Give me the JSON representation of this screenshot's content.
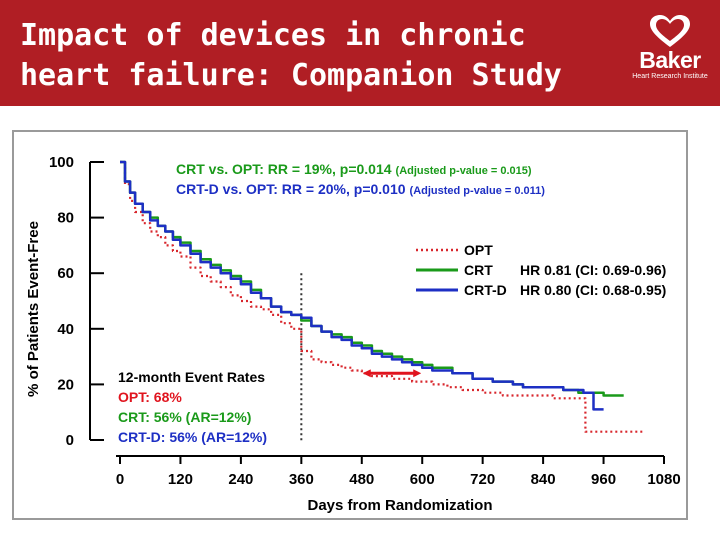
{
  "header": {
    "title_line1": "Impact of devices in chronic",
    "title_line2": "heart failure: Companion Study",
    "logo_text": "Baker",
    "logo_subtext": "Heart Research Institute",
    "background_color": "#b01e24"
  },
  "chart_data": {
    "type": "line",
    "xlabel": "Days from Randomization",
    "ylabel": "% of Patients Event-Free",
    "xlim": [
      0,
      1080
    ],
    "ylim": [
      0,
      100
    ],
    "xticks": [
      0,
      120,
      240,
      360,
      480,
      600,
      720,
      840,
      960,
      1080
    ],
    "yticks": [
      0,
      20,
      40,
      60,
      80,
      100
    ],
    "grid": false,
    "reference_line_x": 360,
    "annotations": {
      "crt_vs_opt": {
        "main": "CRT vs. OPT:  RR = 19%, p=0.014",
        "adjusted": "(Adjusted p-value = 0.015)",
        "color": "#1a9a1a"
      },
      "crtd_vs_opt": {
        "main": "CRT-D vs. OPT:  RR = 20%, p=0.010",
        "adjusted": "(Adjusted p-value = 0.011)",
        "color": "#1d2fc4"
      },
      "event_rates": {
        "heading": "12-month Event Rates",
        "opt": "OPT: 68%",
        "crt": "CRT: 56%  (AR=12%)",
        "crtd": "CRT-D: 56% (AR=12%)"
      },
      "arrow": {
        "x_from": 480,
        "x_to": 600,
        "y": 24,
        "color": "#e0141e"
      }
    },
    "legend": {
      "placement": "right",
      "entries": [
        {
          "name": "OPT",
          "hr": ""
        },
        {
          "name": "CRT",
          "hr": "HR 0.81 (CI:  0.69-0.96)"
        },
        {
          "name": "CRT-D",
          "hr": "HR 0.80 (CI:  0.68-0.95)"
        }
      ]
    },
    "series": [
      {
        "name": "OPT",
        "color": "#d8262c",
        "style": "dotted",
        "points": [
          [
            0,
            100
          ],
          [
            10,
            92
          ],
          [
            20,
            86
          ],
          [
            30,
            82
          ],
          [
            45,
            78
          ],
          [
            60,
            75
          ],
          [
            75,
            73
          ],
          [
            90,
            70
          ],
          [
            105,
            68
          ],
          [
            120,
            66
          ],
          [
            140,
            62
          ],
          [
            160,
            59
          ],
          [
            180,
            57
          ],
          [
            200,
            55
          ],
          [
            220,
            52
          ],
          [
            240,
            50
          ],
          [
            260,
            48
          ],
          [
            280,
            47
          ],
          [
            300,
            45
          ],
          [
            320,
            42
          ],
          [
            340,
            40
          ],
          [
            360,
            32
          ],
          [
            380,
            29
          ],
          [
            400,
            28
          ],
          [
            420,
            27
          ],
          [
            440,
            26
          ],
          [
            460,
            25
          ],
          [
            480,
            24
          ],
          [
            500,
            23
          ],
          [
            520,
            23
          ],
          [
            540,
            22
          ],
          [
            560,
            22
          ],
          [
            580,
            21
          ],
          [
            600,
            21
          ],
          [
            620,
            20
          ],
          [
            650,
            19
          ],
          [
            680,
            18
          ],
          [
            720,
            17
          ],
          [
            760,
            16
          ],
          [
            800,
            16
          ],
          [
            860,
            15
          ],
          [
            900,
            15
          ],
          [
            920,
            15
          ],
          [
            924,
            3
          ],
          [
            950,
            3
          ],
          [
            1040,
            3
          ]
        ]
      },
      {
        "name": "CRT",
        "color": "#1a9a1a",
        "style": "solid",
        "points": [
          [
            0,
            100
          ],
          [
            10,
            93
          ],
          [
            20,
            89
          ],
          [
            30,
            85
          ],
          [
            45,
            82
          ],
          [
            60,
            80
          ],
          [
            75,
            77
          ],
          [
            90,
            75
          ],
          [
            105,
            73
          ],
          [
            120,
            71
          ],
          [
            140,
            68
          ],
          [
            160,
            65
          ],
          [
            180,
            63
          ],
          [
            200,
            61
          ],
          [
            220,
            59
          ],
          [
            240,
            57
          ],
          [
            260,
            54
          ],
          [
            280,
            51
          ],
          [
            300,
            48
          ],
          [
            320,
            46
          ],
          [
            340,
            45
          ],
          [
            360,
            43
          ],
          [
            380,
            41
          ],
          [
            400,
            39
          ],
          [
            420,
            38
          ],
          [
            440,
            37
          ],
          [
            460,
            35
          ],
          [
            480,
            34
          ],
          [
            500,
            32
          ],
          [
            520,
            31
          ],
          [
            540,
            30
          ],
          [
            560,
            29
          ],
          [
            580,
            28
          ],
          [
            600,
            27
          ],
          [
            620,
            26
          ],
          [
            660,
            24
          ],
          [
            700,
            22
          ],
          [
            740,
            21
          ],
          [
            780,
            20
          ],
          [
            800,
            19
          ],
          [
            840,
            19
          ],
          [
            880,
            18
          ],
          [
            910,
            17
          ],
          [
            960,
            16
          ],
          [
            1000,
            16
          ]
        ]
      },
      {
        "name": "CRT-D",
        "color": "#1d2fc4",
        "style": "solid",
        "points": [
          [
            0,
            100
          ],
          [
            10,
            93
          ],
          [
            20,
            89
          ],
          [
            30,
            85
          ],
          [
            45,
            82
          ],
          [
            60,
            79
          ],
          [
            75,
            77
          ],
          [
            90,
            75
          ],
          [
            105,
            72
          ],
          [
            120,
            70
          ],
          [
            140,
            67
          ],
          [
            160,
            64
          ],
          [
            180,
            62
          ],
          [
            200,
            60
          ],
          [
            220,
            58
          ],
          [
            240,
            56
          ],
          [
            260,
            53
          ],
          [
            280,
            51
          ],
          [
            300,
            48
          ],
          [
            320,
            46
          ],
          [
            340,
            45
          ],
          [
            360,
            44
          ],
          [
            380,
            41
          ],
          [
            400,
            39
          ],
          [
            420,
            37
          ],
          [
            440,
            36
          ],
          [
            460,
            34
          ],
          [
            480,
            33
          ],
          [
            500,
            31
          ],
          [
            520,
            30
          ],
          [
            540,
            29
          ],
          [
            560,
            28
          ],
          [
            580,
            27
          ],
          [
            600,
            26
          ],
          [
            620,
            25
          ],
          [
            660,
            24
          ],
          [
            700,
            22
          ],
          [
            740,
            21
          ],
          [
            780,
            20
          ],
          [
            800,
            19
          ],
          [
            840,
            19
          ],
          [
            880,
            18
          ],
          [
            920,
            17
          ],
          [
            940,
            11
          ],
          [
            960,
            11
          ]
        ]
      }
    ]
  }
}
